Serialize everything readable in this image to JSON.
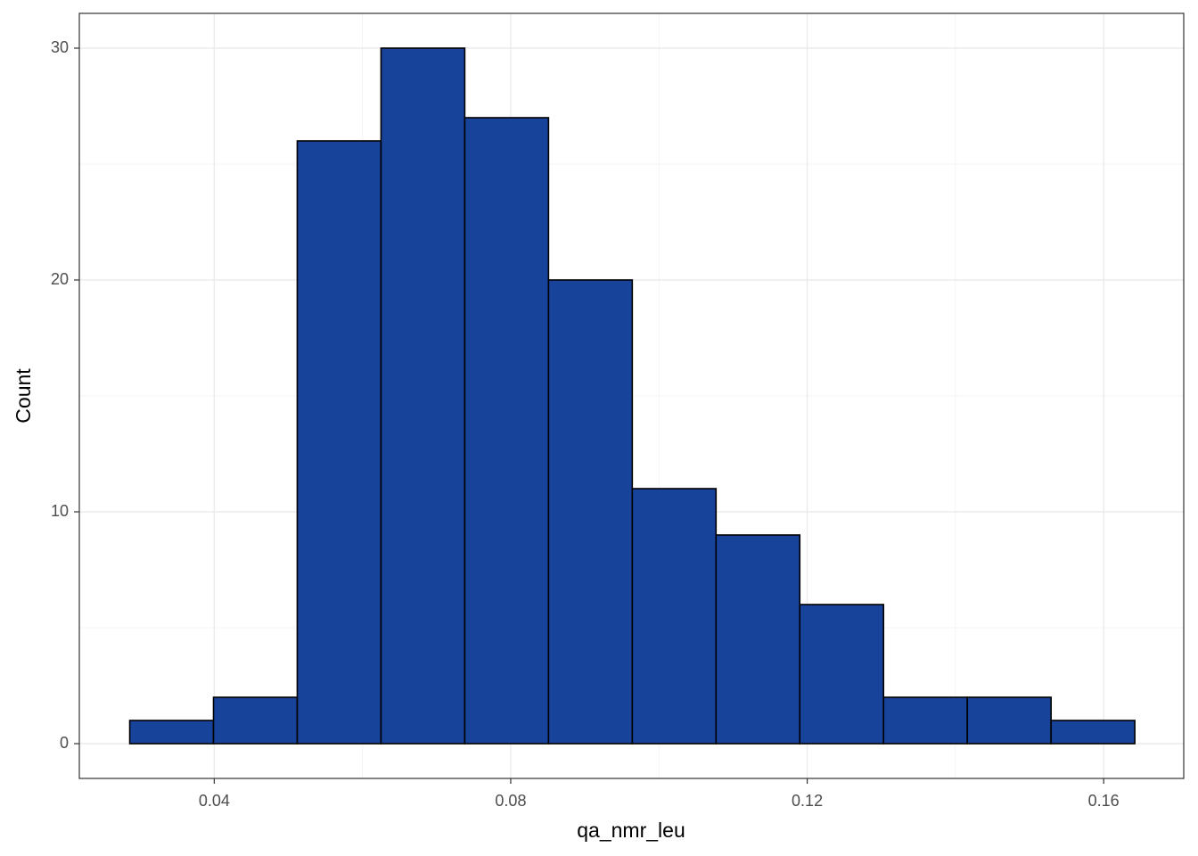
{
  "chart_data": {
    "type": "histogram",
    "x_label": "qa_nmr_leu",
    "y_label": "Count",
    "bins": [
      0.0286,
      0.0399,
      0.0512,
      0.0625,
      0.0738,
      0.0851,
      0.0964,
      0.1077,
      0.119,
      0.1303,
      0.1416,
      0.1529,
      0.1642
    ],
    "values": [
      1,
      2,
      26,
      30,
      27,
      20,
      11,
      9,
      6,
      2,
      2,
      1
    ],
    "color": "#17439b",
    "edge_color": "#000000",
    "xlim": [
      0.0218,
      0.1708
    ],
    "xticks": [
      0.04,
      0.08,
      0.12,
      0.16
    ],
    "ylim": [
      -1.5,
      31.5
    ],
    "yticks": [
      0,
      10,
      20,
      30
    ],
    "xminor": [
      0.06,
      0.1,
      0.14
    ],
    "yminor": [
      5,
      15,
      25
    ],
    "grid": true
  }
}
